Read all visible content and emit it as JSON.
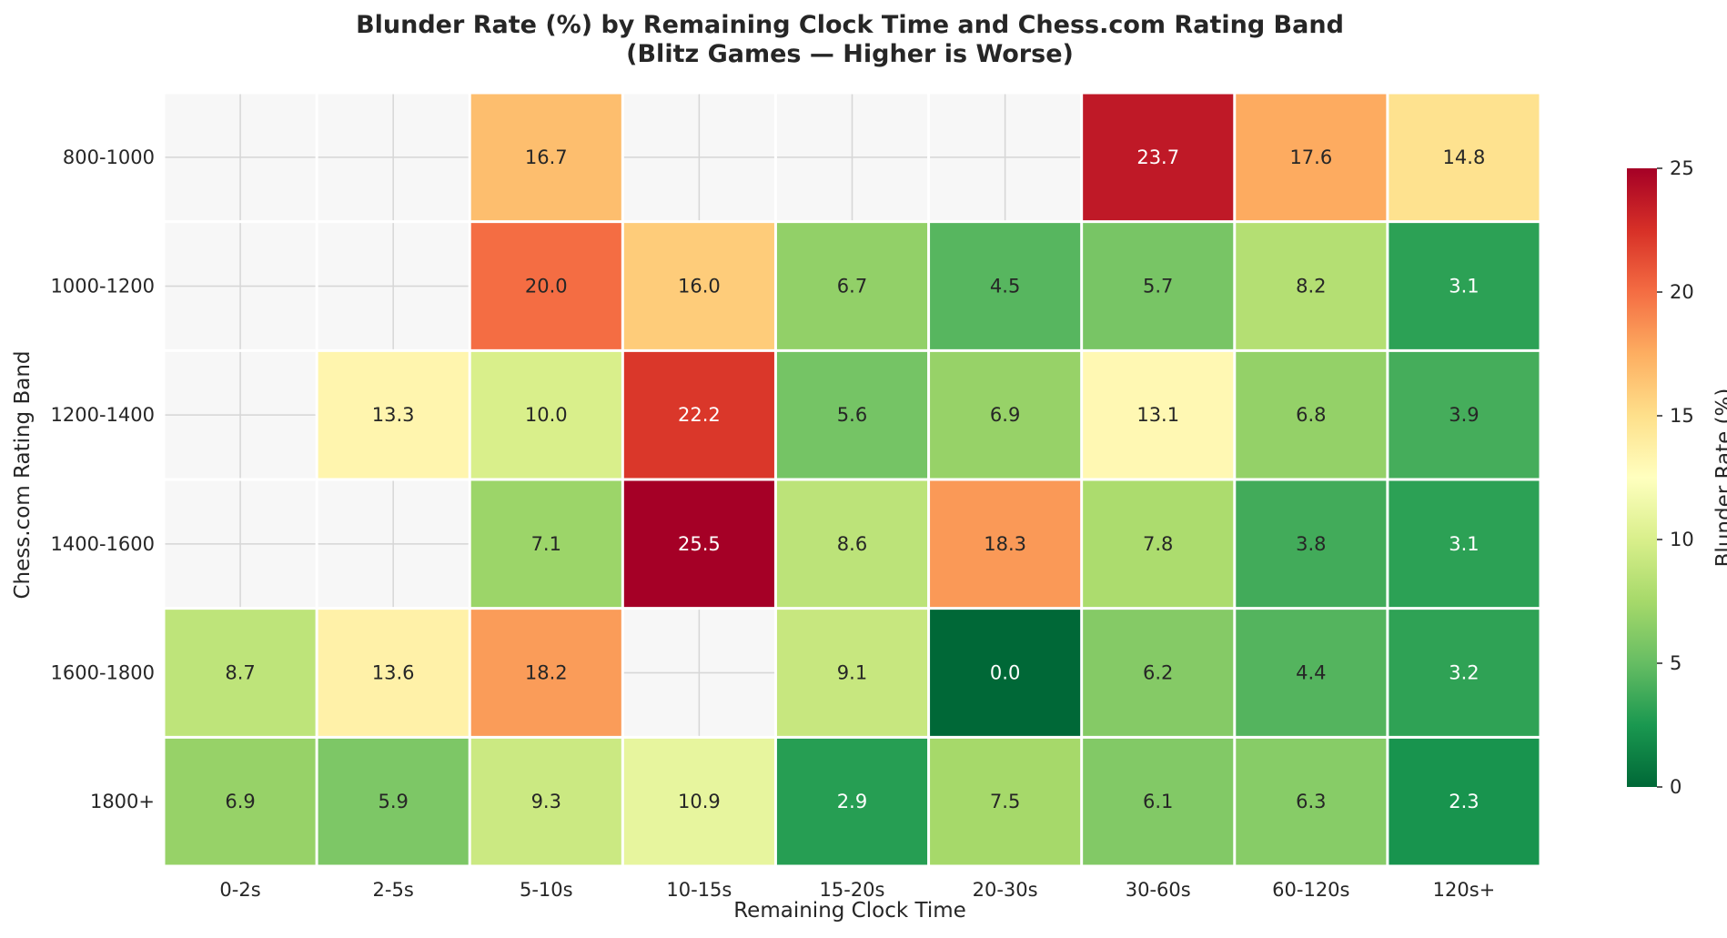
{
  "chart_data": {
    "type": "heatmap",
    "title": "Blunder Rate (%) by Remaining Clock Time and Chess.com Rating Band",
    "subtitle": "(Blitz Games — Higher is Worse)",
    "xlabel": "Remaining Clock Time",
    "ylabel": "Chess.com Rating Band",
    "x_categories": [
      "0-2s",
      "2-5s",
      "5-10s",
      "10-15s",
      "15-20s",
      "20-30s",
      "30-60s",
      "60-120s",
      "120s+"
    ],
    "y_categories": [
      "800-1000",
      "1000-1200",
      "1200-1400",
      "1400-1600",
      "1600-1800",
      "1800+"
    ],
    "values": [
      [
        null,
        null,
        16.7,
        null,
        null,
        null,
        23.7,
        17.6,
        14.8
      ],
      [
        null,
        null,
        20.0,
        16.0,
        6.7,
        4.5,
        5.7,
        8.2,
        3.1
      ],
      [
        null,
        13.3,
        10.0,
        22.2,
        5.6,
        6.9,
        13.1,
        6.8,
        3.9
      ],
      [
        null,
        null,
        7.1,
        25.5,
        8.6,
        18.3,
        7.8,
        3.8,
        3.1
      ],
      [
        8.7,
        13.6,
        18.2,
        null,
        9.1,
        0.0,
        6.2,
        4.4,
        3.2
      ],
      [
        6.9,
        5.9,
        9.3,
        10.9,
        2.9,
        7.5,
        6.1,
        6.3,
        2.3
      ]
    ],
    "value_format": "0.0",
    "colormap": "RdYlGn_r",
    "colorbar": {
      "label": "Blunder Rate (%)",
      "range": [
        0,
        25
      ],
      "ticks": [
        0,
        5,
        10,
        15,
        20,
        25
      ]
    },
    "missing_color": "#f7f7f7",
    "grid": true
  }
}
